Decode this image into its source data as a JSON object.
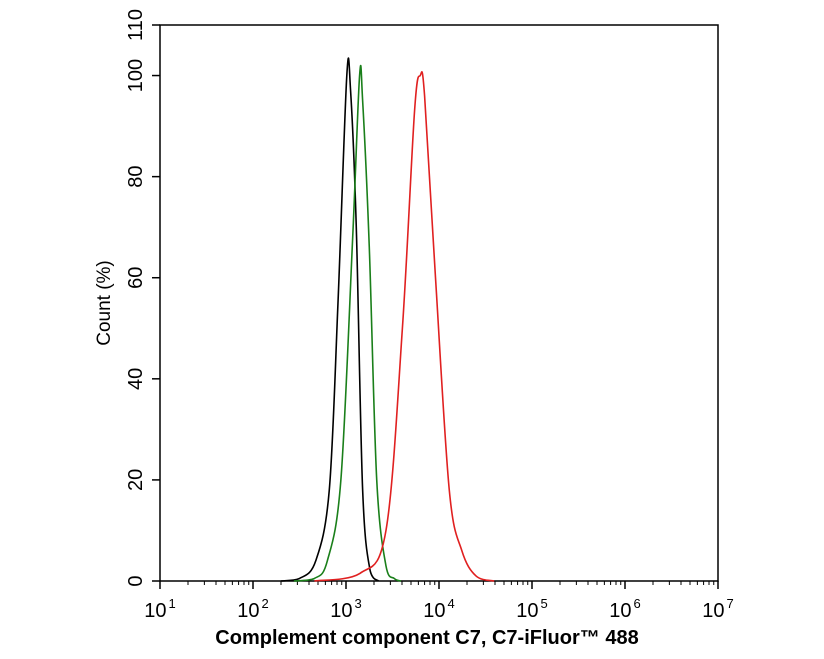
{
  "chart_data": {
    "type": "line",
    "title": "",
    "xlabel": "Complement component C7, C7-iFluor™ 488",
    "ylabel": "Count  (%)",
    "xscale": "log10",
    "xlim": [
      10,
      10000000
    ],
    "ylim": [
      0,
      110
    ],
    "x_ticks": [
      {
        "base": "10",
        "exp": "1",
        "value": 10
      },
      {
        "base": "10",
        "exp": "2",
        "value": 100
      },
      {
        "base": "10",
        "exp": "3",
        "value": 1000
      },
      {
        "base": "10",
        "exp": "4",
        "value": 10000
      },
      {
        "base": "10",
        "exp": "5",
        "value": 100000
      },
      {
        "base": "10",
        "exp": "6",
        "value": 1000000
      },
      {
        "base": "10",
        "exp": "7",
        "value": 10000000
      }
    ],
    "y_ticks": [
      "0",
      "20",
      "40",
      "60",
      "80",
      "100",
      "110"
    ],
    "grid": false,
    "series": [
      {
        "name": "black",
        "color": "#000000",
        "points": [
          [
            200,
            0
          ],
          [
            316,
            0.5
          ],
          [
            473,
            4
          ],
          [
            661,
            18
          ],
          [
            820,
            55
          ],
          [
            1020,
            100
          ],
          [
            1120,
            97
          ],
          [
            1290,
            70
          ],
          [
            1510,
            18
          ],
          [
            1820,
            2
          ],
          [
            2240,
            0
          ]
        ]
      },
      {
        "name": "green",
        "color": "#1a7f1a",
        "points": [
          [
            275,
            0
          ],
          [
            457,
            0.5
          ],
          [
            630,
            4
          ],
          [
            881,
            20
          ],
          [
            1180,
            68
          ],
          [
            1400,
            100
          ],
          [
            1510,
            95
          ],
          [
            1780,
            66
          ],
          [
            2140,
            20
          ],
          [
            2690,
            3
          ],
          [
            3300,
            0.5
          ],
          [
            3900,
            0
          ]
        ]
      },
      {
        "name": "red",
        "color": "#e02020",
        "points": [
          [
            457,
            0
          ],
          [
            1410,
            1.5
          ],
          [
            2690,
            10
          ],
          [
            4040,
            50
          ],
          [
            5460,
            93
          ],
          [
            6280,
            100
          ],
          [
            7000,
            96
          ],
          [
            9170,
            60
          ],
          [
            12900,
            18
          ],
          [
            17600,
            6
          ],
          [
            25000,
            1
          ],
          [
            39200,
            0
          ]
        ]
      }
    ]
  }
}
